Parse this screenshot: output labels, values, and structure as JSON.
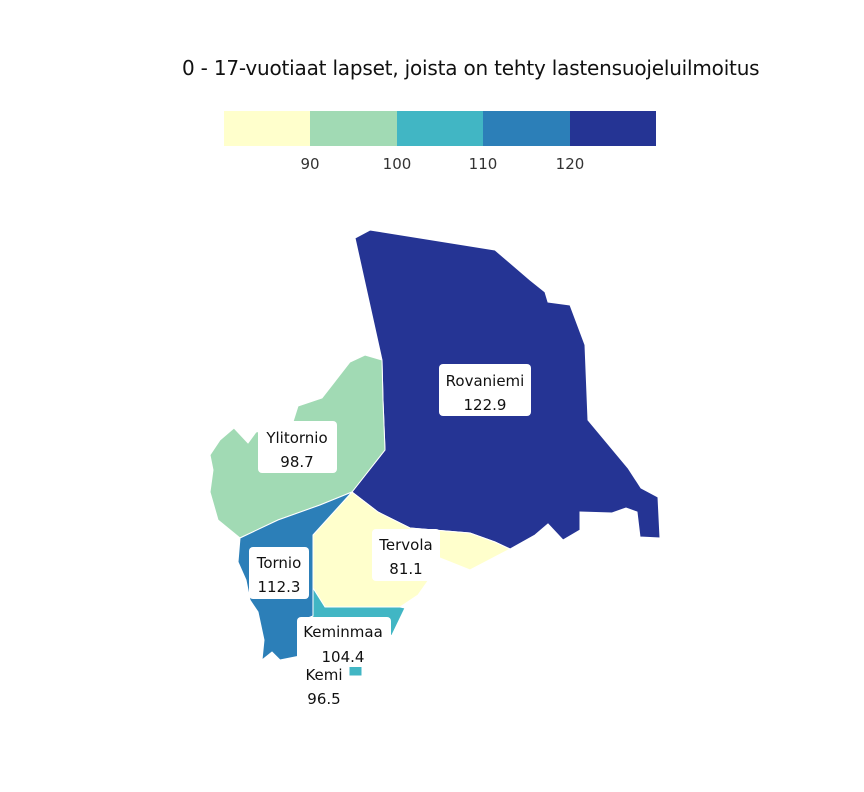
{
  "title": "0 - 17-vuotiaat lapset, joista on tehty lastensuojeluilmoitus",
  "legend": {
    "colors": [
      "#ffffcc",
      "#a1dab4",
      "#41b6c4",
      "#2c7fb8",
      "#253494"
    ],
    "ticks": [
      "90",
      "100",
      "110",
      "120"
    ]
  },
  "regions": [
    {
      "name": "Rovaniemi",
      "value": "122.9",
      "color": "#253494"
    },
    {
      "name": "Ylitornio",
      "value": "98.7",
      "color": "#a1dab4"
    },
    {
      "name": "Tervola",
      "value": "81.1",
      "color": "#ffffcc"
    },
    {
      "name": "Tornio",
      "value": "112.3",
      "color": "#2c7fb8"
    },
    {
      "name": "Keminmaa",
      "value": "104.4",
      "color": "#41b6c4"
    },
    {
      "name": "Kemi",
      "value": "96.5",
      "color": "#a1dab4"
    }
  ]
}
